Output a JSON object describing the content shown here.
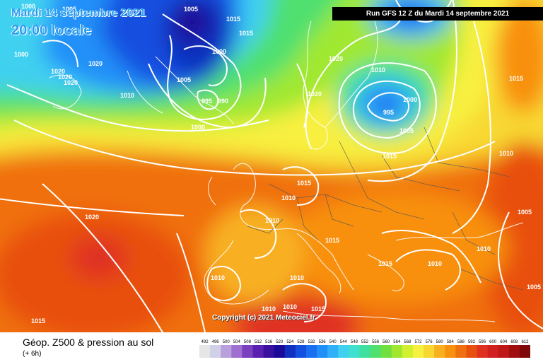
{
  "header": {
    "date_line": "Mardi 14 septembre 2021",
    "time_line": "20:00 locale",
    "run_info": "Run GFS 12 Z du Mardi 14 septembre 2021"
  },
  "copyright": "Copyright (c) 2021 Meteociel.fr",
  "legend": {
    "title": "Géop. Z500 & pression au sol",
    "subtitle": "(+ 6h)",
    "levels": [
      "492",
      "496",
      "500",
      "504",
      "508",
      "512",
      "516",
      "520",
      "524",
      "528",
      "532",
      "536",
      "540",
      "544",
      "548",
      "552",
      "556",
      "560",
      "564",
      "568",
      "572",
      "576",
      "580",
      "584",
      "588",
      "592",
      "596",
      "600",
      "604",
      "608",
      "612"
    ],
    "colors": [
      "#e6e6e6",
      "#d0d0e8",
      "#b8a0dc",
      "#a070d0",
      "#7a40c0",
      "#5a20b0",
      "#3a10a0",
      "#1a0a9a",
      "#1030c0",
      "#1450e0",
      "#1a6ef0",
      "#2090f8",
      "#30b0f8",
      "#40d0f0",
      "#40e0d0",
      "#40e0a0",
      "#50e070",
      "#70e040",
      "#a0e830",
      "#d0f030",
      "#f8f040",
      "#f8d830",
      "#f8b020",
      "#f89010",
      "#f07010",
      "#e85010",
      "#e03020",
      "#d02020",
      "#c01818",
      "#a01010",
      "#800808"
    ]
  },
  "pressure_labels": [
    {
      "text": "1000"
    },
    {
      "text": "1005"
    },
    {
      "text": "1015"
    },
    {
      "text": "1015"
    },
    {
      "text": "1000"
    },
    {
      "text": "1005"
    },
    {
      "text": "1020"
    },
    {
      "text": "1020"
    },
    {
      "text": "1020"
    },
    {
      "text": "1020"
    },
    {
      "text": "1010"
    },
    {
      "text": "1000"
    },
    {
      "text": "1005"
    },
    {
      "text": "995"
    },
    {
      "text": "990"
    },
    {
      "text": "1000"
    },
    {
      "text": "1020"
    },
    {
      "text": "1010"
    },
    {
      "text": "1020"
    },
    {
      "text": "995"
    },
    {
      "text": "1000"
    },
    {
      "text": "1005"
    },
    {
      "text": "1015"
    },
    {
      "text": "1015"
    },
    {
      "text": "1010"
    },
    {
      "text": "1010"
    },
    {
      "text": "1015"
    },
    {
      "text": "1020"
    },
    {
      "text": "1010"
    },
    {
      "text": "1015"
    },
    {
      "text": "1005"
    },
    {
      "text": "1010"
    },
    {
      "text": "1015"
    },
    {
      "text": "1010"
    },
    {
      "text": "1010"
    },
    {
      "text": "1010"
    },
    {
      "text": "1005"
    },
    {
      "text": "1010"
    },
    {
      "text": "1010"
    },
    {
      "text": "1015"
    },
    {
      "text": "1015"
    }
  ]
}
